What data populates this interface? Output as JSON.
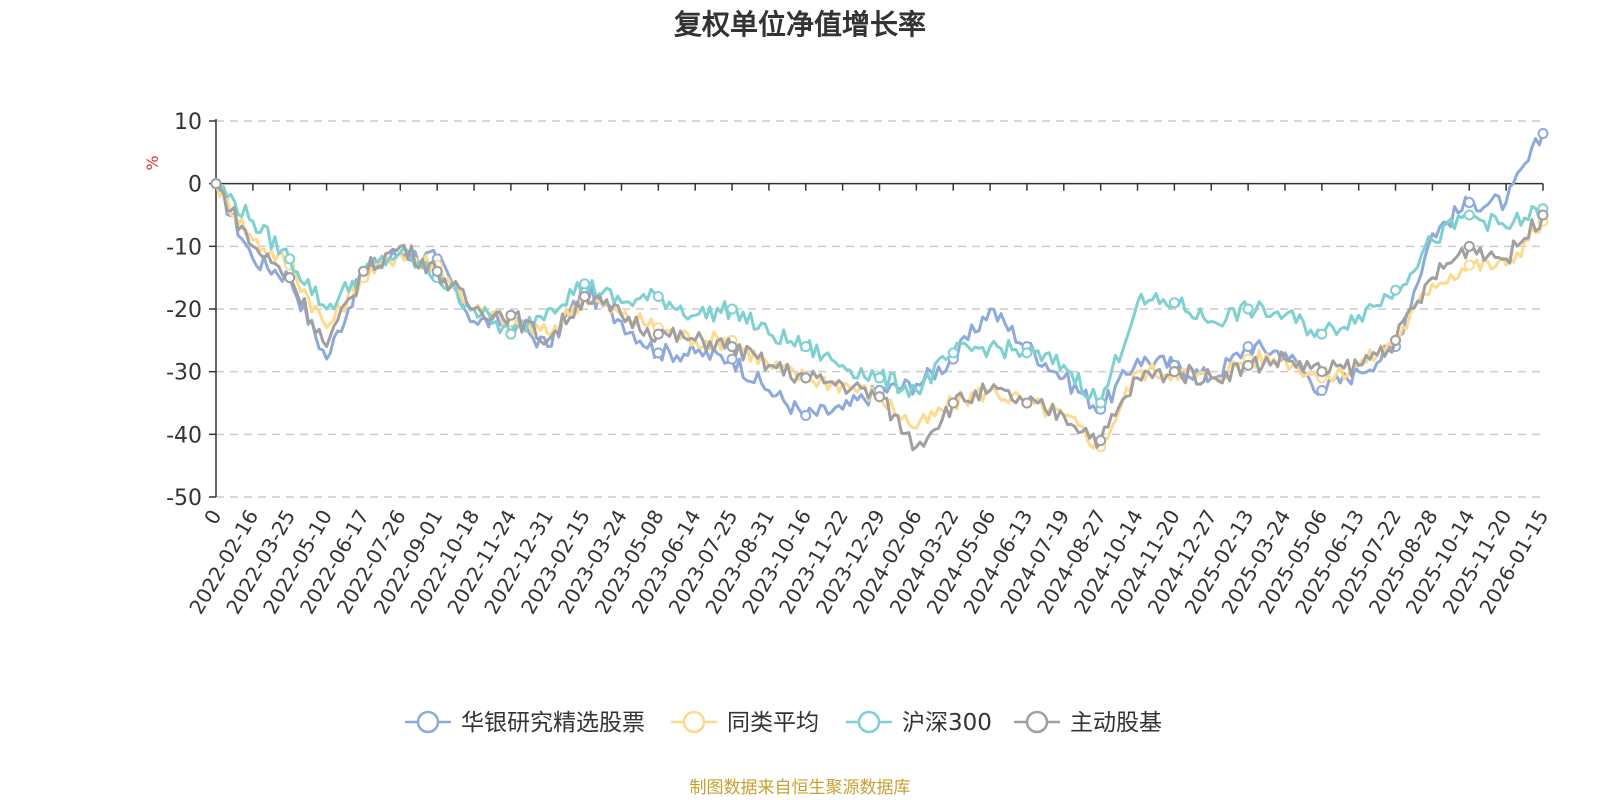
{
  "chart_data": {
    "type": "line",
    "title": "复权单位净值增长率",
    "ylabel": "%",
    "ylim": [
      -50,
      10
    ],
    "yticks": [
      "10",
      "0",
      "-10",
      "-20",
      "-30",
      "-40",
      "-50"
    ],
    "categories": [
      "0",
      "2022-02-16",
      "2022-03-25",
      "2022-05-10",
      "2022-06-17",
      "2022-07-26",
      "2022-09-01",
      "2022-10-18",
      "2022-11-24",
      "2022-12-31",
      "2023-02-15",
      "2023-03-24",
      "2023-05-08",
      "2023-06-14",
      "2023-07-25",
      "2023-08-31",
      "2023-10-16",
      "2023-11-22",
      "2023-12-29",
      "2024-02-06",
      "2024-03-22",
      "2024-05-06",
      "2024-06-13",
      "2024-07-19",
      "2024-08-27",
      "2024-10-14",
      "2024-11-20",
      "2024-12-27",
      "2025-02-13",
      "2025-03-24",
      "2025-05-06",
      "2025-06-13",
      "2025-07-22",
      "2025-08-28",
      "2025-10-14",
      "2025-11-20",
      "2026-01-15"
    ],
    "series": [
      {
        "name": "华银研究精选股票",
        "color": "#8eaadb",
        "values": [
          0,
          -12,
          -15,
          -28,
          -14,
          -11,
          -12,
          -22,
          -22,
          -26,
          -17,
          -22,
          -27,
          -27,
          -28,
          -33,
          -37,
          -36,
          -33,
          -32,
          -28,
          -20,
          -26,
          -31,
          -36,
          -28,
          -29,
          -31,
          -26,
          -27,
          -33,
          -30,
          -26,
          -8,
          -3,
          -3,
          8
        ]
      },
      {
        "name": "同类平均",
        "color": "#ffd98e",
        "values": [
          0,
          -9,
          -13,
          -23,
          -15,
          -11,
          -13,
          -20,
          -22,
          -24,
          -18,
          -21,
          -23,
          -25,
          -25,
          -29,
          -31,
          -32,
          -34,
          -39,
          -35,
          -33,
          -35,
          -37,
          -42,
          -30,
          -30,
          -31,
          -28,
          -28,
          -31,
          -29,
          -25,
          -16,
          -13,
          -13,
          -6
        ]
      },
      {
        "name": "沪深300",
        "color": "#7fd1d1",
        "values": [
          0,
          -6,
          -12,
          -20,
          -14,
          -11,
          -15,
          -20,
          -24,
          -20,
          -16,
          -19,
          -18,
          -21,
          -20,
          -24,
          -26,
          -29,
          -31,
          -33,
          -27,
          -26,
          -27,
          -29,
          -35,
          -19,
          -19,
          -22,
          -20,
          -21,
          -24,
          -21,
          -17,
          -9,
          -5,
          -7,
          -4
        ]
      },
      {
        "name": "主动股基",
        "color": "#a0a0a0",
        "values": [
          0,
          -10,
          -15,
          -26,
          -14,
          -10,
          -14,
          -20,
          -21,
          -25,
          -18,
          -21,
          -24,
          -25,
          -26,
          -29,
          -31,
          -32,
          -34,
          -42,
          -35,
          -33,
          -35,
          -37,
          -41,
          -31,
          -30,
          -31,
          -29,
          -28,
          -30,
          -29,
          -25,
          -15,
          -10,
          -12,
          -5
        ]
      }
    ]
  },
  "footer": {
    "source": "制图数据来自恒生聚源数据库"
  }
}
